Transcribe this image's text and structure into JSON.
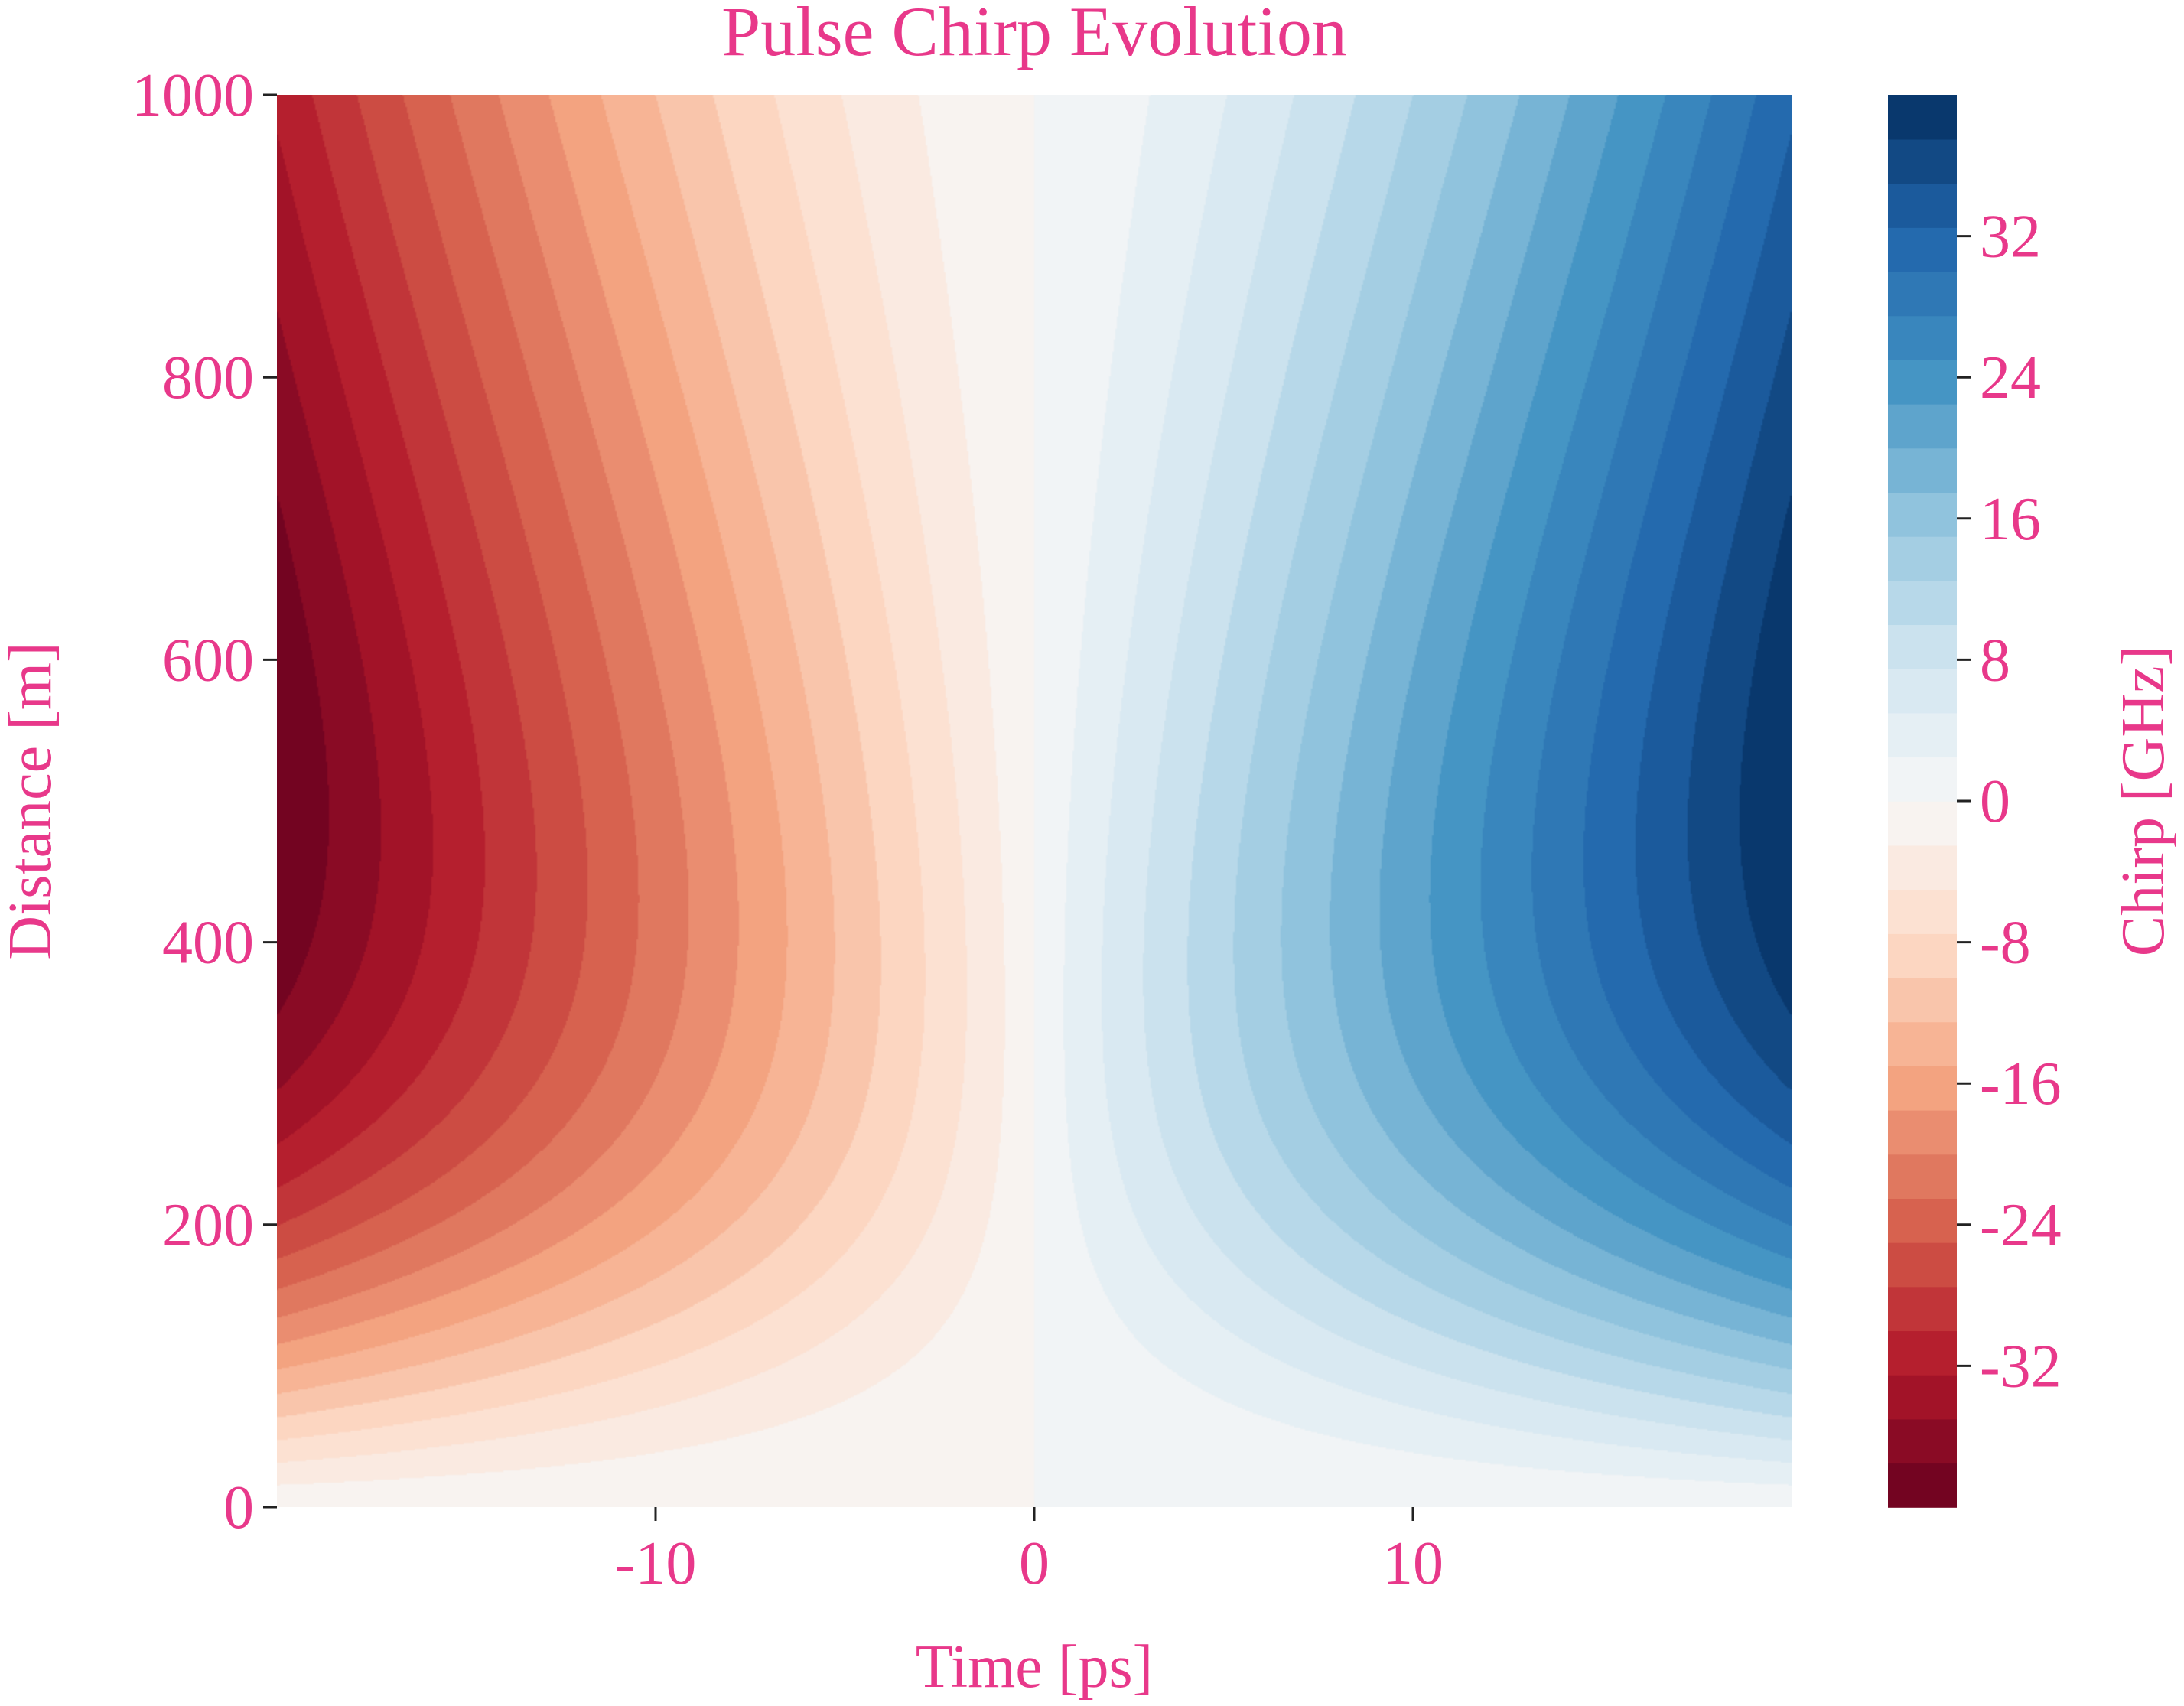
{
  "chart_data": {
    "type": "heatmap",
    "title": "Pulse Chirp Evolution",
    "xlabel": "Time [ps]",
    "ylabel": "Distance [m]",
    "colorbar_label": "Chirp [GHz]",
    "xlim": [
      -20,
      20
    ],
    "ylim": [
      0,
      1000
    ],
    "x_ticks": [
      -10,
      0,
      10
    ],
    "x_tick_labels": [
      "-10",
      "0",
      "10"
    ],
    "y_ticks": [
      0,
      200,
      400,
      600,
      800,
      1000
    ],
    "y_tick_labels": [
      "0",
      "200",
      "400",
      "600",
      "800",
      "1000"
    ],
    "color_range": [
      -40,
      40
    ],
    "color_level_step": 2.5,
    "colorbar_ticks": [
      -32,
      -24,
      -16,
      -8,
      0,
      8,
      16,
      24,
      32
    ],
    "colorbar_tick_labels": [
      "-32",
      "-24",
      "-16",
      "-8",
      "0",
      "8",
      "16",
      "24",
      "32"
    ],
    "colormap": "RdBu",
    "colormap_stops": [
      "#67001f",
      "#b2182b",
      "#d6604d",
      "#f4a582",
      "#fddbc7",
      "#f7f7f7",
      "#d1e5f0",
      "#92c5de",
      "#4393c3",
      "#2166ac",
      "#053061"
    ],
    "field_description_values": {
      "max_abs_chirp_at_edge": 40,
      "distance_of_max_chirp": 500,
      "time_edge": 20
    },
    "grid": false,
    "text_color": "#e8388a"
  }
}
